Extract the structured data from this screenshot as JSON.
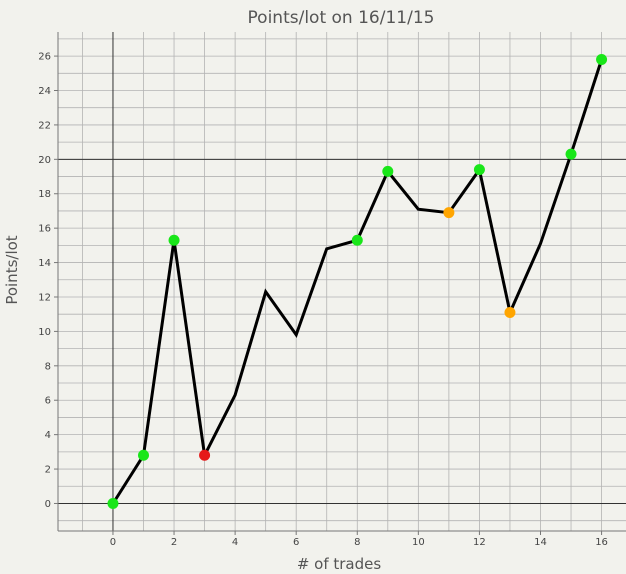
{
  "chart_data": {
    "type": "line",
    "title": "Points/lot on 16/11/15",
    "xlabel": "# of trades",
    "ylabel": "Points/lot",
    "xlim": [
      -1.8,
      16.8
    ],
    "ylim": [
      -1.6,
      27.4
    ],
    "x_ticks": [
      0,
      2,
      4,
      6,
      8,
      10,
      12,
      14,
      16
    ],
    "y_ticks": [
      0,
      2,
      4,
      6,
      8,
      10,
      12,
      14,
      16,
      18,
      20,
      22,
      24,
      26
    ],
    "grid": true,
    "x": [
      0,
      1,
      2,
      3,
      4,
      5,
      6,
      7,
      8,
      9,
      10,
      11,
      12,
      13,
      14,
      15,
      16
    ],
    "y": [
      0.0,
      2.8,
      15.3,
      2.8,
      6.3,
      12.3,
      9.8,
      14.8,
      15.3,
      19.3,
      17.1,
      16.9,
      19.4,
      11.1,
      15.1,
      20.3,
      25.8
    ],
    "markers": [
      {
        "x": 0,
        "y": 0.0,
        "color": "#19e619"
      },
      {
        "x": 1,
        "y": 2.8,
        "color": "#19e619"
      },
      {
        "x": 2,
        "y": 15.3,
        "color": "#19e619"
      },
      {
        "x": 3,
        "y": 2.8,
        "color": "#e61919"
      },
      {
        "x": 8,
        "y": 15.3,
        "color": "#19e619"
      },
      {
        "x": 9,
        "y": 19.3,
        "color": "#19e619"
      },
      {
        "x": 11,
        "y": 16.9,
        "color": "#ffa500"
      },
      {
        "x": 12,
        "y": 19.4,
        "color": "#19e619"
      },
      {
        "x": 13,
        "y": 11.1,
        "color": "#ffa500"
      },
      {
        "x": 15,
        "y": 20.3,
        "color": "#19e619"
      },
      {
        "x": 16,
        "y": 25.8,
        "color": "#19e619"
      }
    ],
    "line_color": "#000000",
    "reference_lines": {
      "x": 0,
      "y": [
        0,
        20
      ]
    }
  }
}
